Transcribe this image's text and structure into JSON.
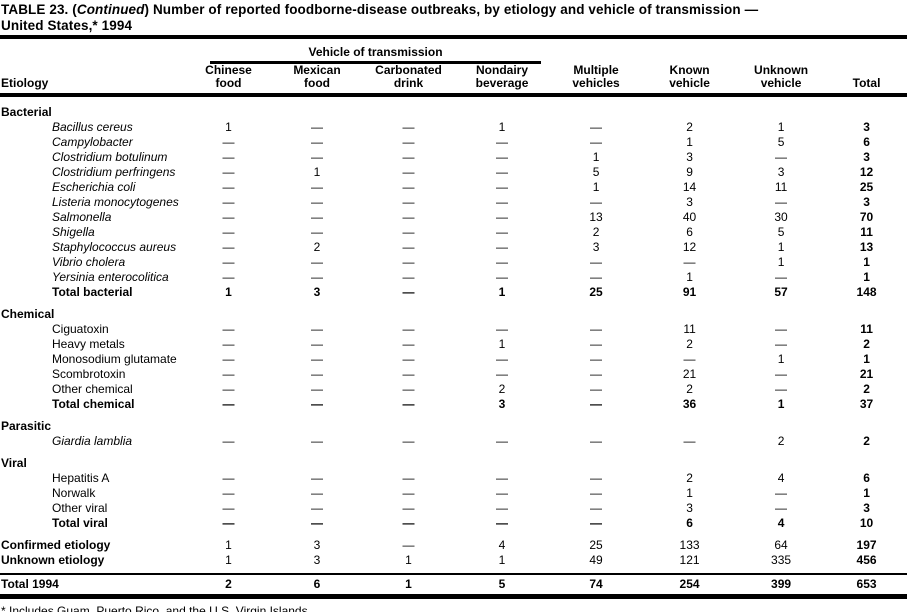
{
  "colors": {
    "text": "#000000",
    "background": "#ffffff",
    "rule": "#000000"
  },
  "title": {
    "prefix": "TABLE 23. (",
    "continued": "Continued",
    "rest": ") Number of reported foodborne-disease  outbreaks, by etiology and vehicle of transmission —",
    "line2": "United States,* 1994"
  },
  "columns": {
    "group_label": "Vehicle of transmission",
    "etiology_label": "Etiology",
    "cols": [
      {
        "id": "chinese-food",
        "lines": [
          "Chinese",
          "food"
        ]
      },
      {
        "id": "mexican-food",
        "lines": [
          "Mexican",
          "food"
        ]
      },
      {
        "id": "carbonated-drink",
        "lines": [
          "Carbonated",
          "drink"
        ]
      },
      {
        "id": "nondairy-beverage",
        "lines": [
          "Nondairy",
          "beverage"
        ]
      },
      {
        "id": "multiple-vehicles",
        "lines": [
          "Multiple",
          "vehicles"
        ]
      },
      {
        "id": "known-vehicle",
        "lines": [
          "Known",
          "vehicle"
        ]
      },
      {
        "id": "unknown-vehicle",
        "lines": [
          "Unknown",
          "vehicle"
        ]
      },
      {
        "id": "total",
        "lines": [
          "Total"
        ]
      }
    ]
  },
  "rows": [
    {
      "type": "section first",
      "label": "Bacterial",
      "values": []
    },
    {
      "type": "species",
      "label": "Bacillus cereus",
      "values": [
        "1",
        "—",
        "—",
        "1",
        "—",
        "2",
        "1",
        "3"
      ]
    },
    {
      "type": "species",
      "label": "Campylobacter",
      "values": [
        "—",
        "—",
        "—",
        "—",
        "—",
        "1",
        "5",
        "6"
      ]
    },
    {
      "type": "species",
      "label": "Clostridium botulinum",
      "values": [
        "—",
        "—",
        "—",
        "—",
        "1",
        "3",
        "—",
        "3"
      ]
    },
    {
      "type": "species",
      "label": "Clostridium perfringens",
      "values": [
        "—",
        "1",
        "—",
        "—",
        "5",
        "9",
        "3",
        "12"
      ]
    },
    {
      "type": "species",
      "label": "Escherichia coli",
      "values": [
        "—",
        "—",
        "—",
        "—",
        "1",
        "14",
        "11",
        "25"
      ]
    },
    {
      "type": "species",
      "label": "Listeria monocytogenes",
      "values": [
        "—",
        "—",
        "—",
        "—",
        "—",
        "3",
        "—",
        "3"
      ]
    },
    {
      "type": "species",
      "label": "Salmonella",
      "values": [
        "—",
        "—",
        "—",
        "—",
        "13",
        "40",
        "30",
        "70"
      ]
    },
    {
      "type": "species",
      "label": "Shigella",
      "values": [
        "—",
        "—",
        "—",
        "—",
        "2",
        "6",
        "5",
        "11"
      ]
    },
    {
      "type": "species",
      "label": "Staphylococcus aureus",
      "values": [
        "—",
        "2",
        "—",
        "—",
        "3",
        "12",
        "1",
        "13"
      ]
    },
    {
      "type": "species",
      "label": "Vibrio cholera",
      "values": [
        "—",
        "—",
        "—",
        "—",
        "—",
        "—",
        "1",
        "1"
      ]
    },
    {
      "type": "species",
      "label": "Yersinia enterocolitica",
      "values": [
        "—",
        "—",
        "—",
        "—",
        "—",
        "1",
        "—",
        "1"
      ]
    },
    {
      "type": "total",
      "label": "Total bacterial",
      "values": [
        "1",
        "3",
        "—",
        "1",
        "25",
        "91",
        "57",
        "148"
      ]
    },
    {
      "type": "section",
      "label": "Chemical",
      "values": []
    },
    {
      "type": "plain",
      "label": "Ciguatoxin",
      "values": [
        "—",
        "—",
        "—",
        "—",
        "—",
        "11",
        "—",
        "11"
      ]
    },
    {
      "type": "plain",
      "label": "Heavy metals",
      "values": [
        "—",
        "—",
        "—",
        "1",
        "—",
        "2",
        "—",
        "2"
      ]
    },
    {
      "type": "plain",
      "label": "Monosodium glutamate",
      "values": [
        "—",
        "—",
        "—",
        "—",
        "—",
        "—",
        "1",
        "1"
      ]
    },
    {
      "type": "plain",
      "label": "Scombrotoxin",
      "values": [
        "—",
        "—",
        "—",
        "—",
        "—",
        "21",
        "—",
        "21"
      ]
    },
    {
      "type": "plain",
      "label": "Other chemical",
      "values": [
        "—",
        "—",
        "—",
        "2",
        "—",
        "2",
        "—",
        "2"
      ]
    },
    {
      "type": "total",
      "label": "Total chemical",
      "values": [
        "—",
        "—",
        "—",
        "3",
        "—",
        "36",
        "1",
        "37"
      ]
    },
    {
      "type": "section",
      "label": "Parasitic",
      "values": []
    },
    {
      "type": "species",
      "label": "Giardia lamblia",
      "values": [
        "—",
        "—",
        "—",
        "—",
        "—",
        "—",
        "2",
        "2"
      ]
    },
    {
      "type": "section",
      "label": "Viral",
      "values": []
    },
    {
      "type": "plain",
      "label": "Hepatitis A",
      "values": [
        "—",
        "—",
        "—",
        "—",
        "—",
        "2",
        "4",
        "6"
      ]
    },
    {
      "type": "plain",
      "label": "Norwalk",
      "values": [
        "—",
        "—",
        "—",
        "—",
        "—",
        "1",
        "—",
        "1"
      ]
    },
    {
      "type": "plain",
      "label": "Other viral",
      "values": [
        "—",
        "—",
        "—",
        "—",
        "—",
        "3",
        "—",
        "3"
      ]
    },
    {
      "type": "total",
      "label": "Total viral",
      "values": [
        "—",
        "—",
        "—",
        "—",
        "—",
        "6",
        "4",
        "10"
      ]
    },
    {
      "type": "summary gap",
      "label": "Confirmed etiology",
      "values": [
        "1",
        "3",
        "—",
        "4",
        "25",
        "133",
        "64",
        "197"
      ]
    },
    {
      "type": "summary",
      "label": "Unknown etiology",
      "values": [
        "1",
        "3",
        "1",
        "1",
        "49",
        "121",
        "335",
        "456"
      ]
    },
    {
      "type": "grand",
      "label": "Total 1994",
      "values": [
        "2",
        "6",
        "1",
        "5",
        "74",
        "254",
        "399",
        "653"
      ]
    }
  ],
  "footnote": "* Includes Guam, Puerto Rico, and the U.S. Virgin Islands."
}
